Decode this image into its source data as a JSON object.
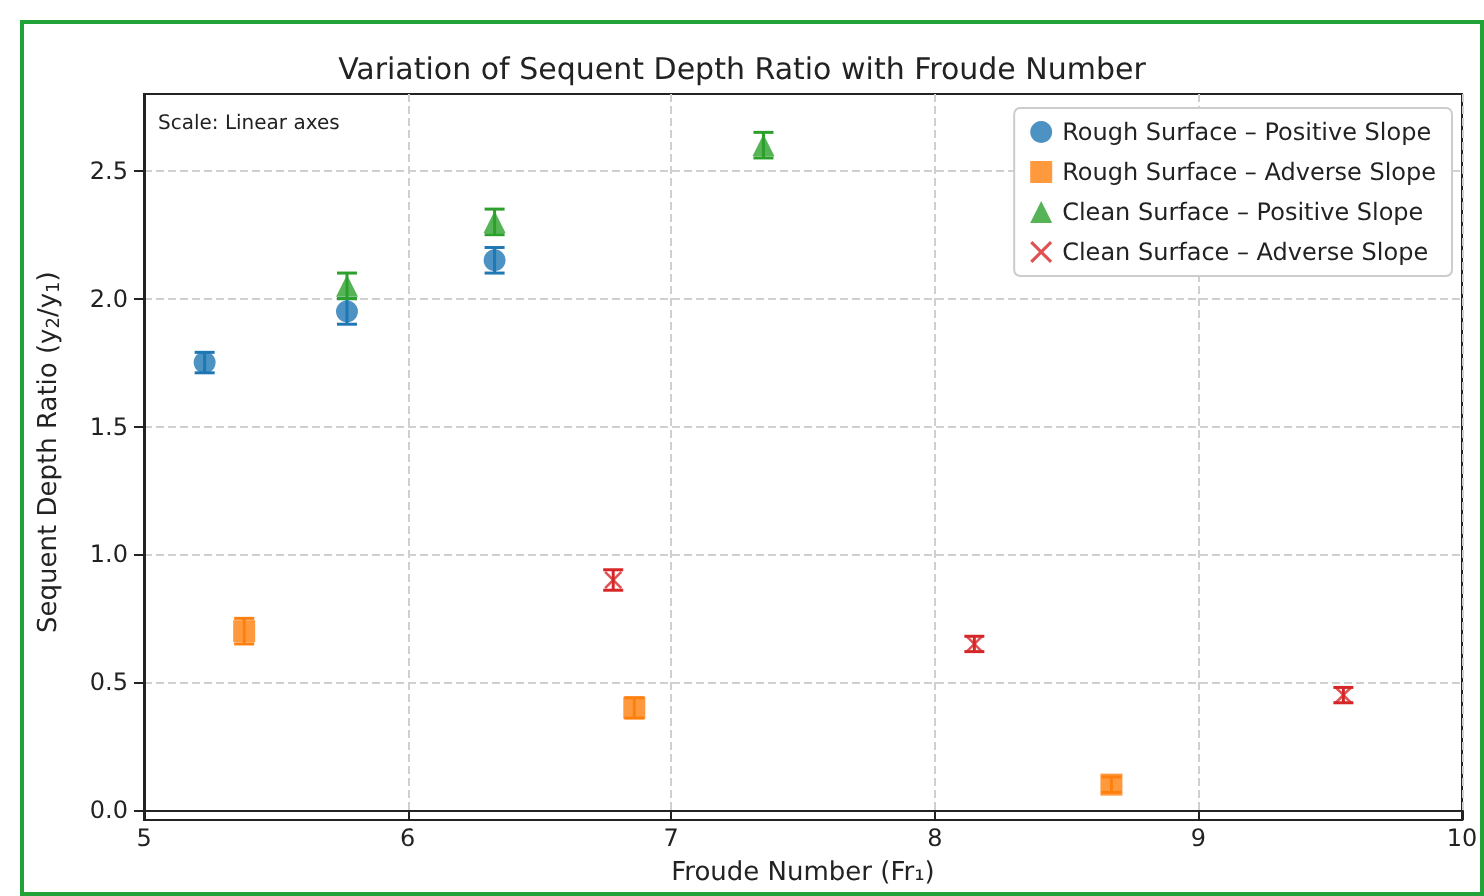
{
  "chart_data": {
    "type": "scatter",
    "title": "Variation of Sequent Depth Ratio with Froude Number",
    "xlabel": "Froude Number (Fr₁)",
    "ylabel": "Sequent Depth Ratio (y$_{2}$/y$_{1}$)",
    "annotations": [
      "Scale: Linear axes"
    ],
    "series": [
      {
        "name": "Rough Surface – Positive Slope",
        "color": "#1f77b4",
        "marker": "circle",
        "x": [
          5.23,
          5.77,
          6.33
        ],
        "values": [
          1.75,
          1.95,
          2.15
        ],
        "errors": [
          0.04,
          0.05,
          0.05
        ]
      },
      {
        "name": "Rough Surface – Adverse Slope",
        "color": "#ff7f0e",
        "marker": "square",
        "x": [
          5.38,
          6.86,
          8.67
        ],
        "values": [
          0.7,
          0.4,
          0.1
        ],
        "errors": [
          0.05,
          0.04,
          0.03
        ]
      },
      {
        "name": "Clean Surface – Positive Slope",
        "color": "#2ca02c",
        "marker": "triangle",
        "x": [
          5.77,
          6.33,
          7.35
        ],
        "values": [
          2.05,
          2.3,
          2.6
        ],
        "errors": [
          0.05,
          0.05,
          0.05
        ]
      },
      {
        "name": "Clean Surface – Adverse Slope",
        "color": "#d62728",
        "marker": "cross",
        "x": [
          6.78,
          8.15,
          9.55
        ],
        "values": [
          0.9,
          0.65,
          0.45
        ],
        "errors": [
          0.04,
          0.03,
          0.03
        ]
      }
    ],
    "xlim": [
      5,
      10
    ],
    "xticks": [
      5,
      6,
      7,
      8,
      9,
      10
    ],
    "ylim": [
      0,
      2.8
    ],
    "yticks": [
      {
        "value": 0,
        "label": "0.0"
      },
      {
        "value": 0.5,
        "label": "0.5"
      },
      {
        "value": 1,
        "label": "1.0"
      },
      {
        "value": 1.5,
        "label": "1.5"
      },
      {
        "value": 2,
        "label": "2.0"
      },
      {
        "value": 2.5,
        "label": "2.5"
      }
    ],
    "grid": true,
    "legend": "top right"
  }
}
